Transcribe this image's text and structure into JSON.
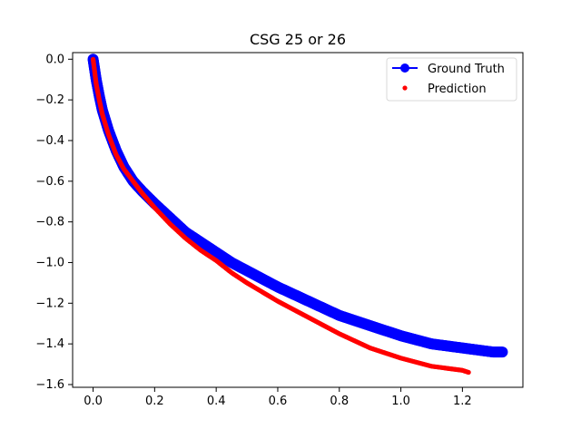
{
  "chart_data": {
    "type": "line",
    "title": "CSG 25 or 26",
    "xlabel": "",
    "ylabel": "",
    "xlim": [
      -0.0665,
      1.3965
    ],
    "ylim": [
      -1.6135,
      0.0325
    ],
    "x_ticks": [
      0.0,
      0.2,
      0.4,
      0.6,
      0.8,
      1.0,
      1.2
    ],
    "x_tick_labels": [
      "0.0",
      "0.2",
      "0.4",
      "0.6",
      "0.8",
      "1.0",
      "1.2"
    ],
    "y_ticks": [
      0.0,
      -0.2,
      -0.4,
      -0.6,
      -0.8,
      -1.0,
      -1.2,
      -1.4,
      -1.6
    ],
    "y_tick_labels": [
      "0.0",
      "−0.2",
      "−0.4",
      "−0.6",
      "−0.8",
      "−1.0",
      "−1.2",
      "−1.4",
      "−1.6"
    ],
    "grid": false,
    "legend_position": "top-right",
    "series": [
      {
        "name": "Ground Truth",
        "color": "#0000ff",
        "style": "line-with-circle-markers",
        "points": [
          [
            0.0,
            0.0
          ],
          [
            0.005,
            -0.05
          ],
          [
            0.01,
            -0.1
          ],
          [
            0.02,
            -0.18
          ],
          [
            0.03,
            -0.25
          ],
          [
            0.05,
            -0.35
          ],
          [
            0.075,
            -0.45
          ],
          [
            0.1,
            -0.53
          ],
          [
            0.13,
            -0.6
          ],
          [
            0.16,
            -0.65
          ],
          [
            0.2,
            -0.71
          ],
          [
            0.25,
            -0.78
          ],
          [
            0.3,
            -0.85
          ],
          [
            0.35,
            -0.9
          ],
          [
            0.4,
            -0.95
          ],
          [
            0.45,
            -1.0
          ],
          [
            0.5,
            -1.04
          ],
          [
            0.6,
            -1.12
          ],
          [
            0.7,
            -1.19
          ],
          [
            0.8,
            -1.26
          ],
          [
            0.9,
            -1.31
          ],
          [
            1.0,
            -1.36
          ],
          [
            1.1,
            -1.4
          ],
          [
            1.2,
            -1.42
          ],
          [
            1.3,
            -1.44
          ],
          [
            1.33,
            -1.44
          ]
        ]
      },
      {
        "name": "Prediction",
        "color": "#ff0000",
        "style": "points",
        "points": [
          [
            0.0,
            0.0
          ],
          [
            0.005,
            -0.06
          ],
          [
            0.01,
            -0.12
          ],
          [
            0.02,
            -0.2
          ],
          [
            0.03,
            -0.27
          ],
          [
            0.05,
            -0.37
          ],
          [
            0.075,
            -0.47
          ],
          [
            0.1,
            -0.54
          ],
          [
            0.13,
            -0.6
          ],
          [
            0.16,
            -0.66
          ],
          [
            0.2,
            -0.73
          ],
          [
            0.25,
            -0.81
          ],
          [
            0.3,
            -0.88
          ],
          [
            0.35,
            -0.94
          ],
          [
            0.4,
            -0.99
          ],
          [
            0.45,
            -1.05
          ],
          [
            0.5,
            -1.1
          ],
          [
            0.6,
            -1.19
          ],
          [
            0.7,
            -1.27
          ],
          [
            0.8,
            -1.35
          ],
          [
            0.9,
            -1.42
          ],
          [
            1.0,
            -1.47
          ],
          [
            1.1,
            -1.51
          ],
          [
            1.2,
            -1.53
          ],
          [
            1.22,
            -1.54
          ]
        ]
      }
    ]
  }
}
